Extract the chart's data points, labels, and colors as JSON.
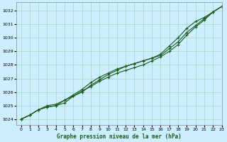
{
  "title": "Graphe pression niveau de la mer (hPa)",
  "background_color": "#cceeff",
  "grid_color": "#b0d8c8",
  "line_color": "#1a5c1a",
  "xlim": [
    -0.5,
    23
  ],
  "ylim": [
    1023.6,
    1032.6
  ],
  "yticks": [
    1024,
    1025,
    1026,
    1027,
    1028,
    1029,
    1030,
    1031,
    1032
  ],
  "xticks": [
    0,
    1,
    2,
    3,
    4,
    5,
    6,
    7,
    8,
    9,
    10,
    11,
    12,
    13,
    14,
    15,
    16,
    17,
    18,
    19,
    20,
    21,
    22,
    23
  ],
  "series1": [
    1024.0,
    1024.3,
    1024.7,
    1025.0,
    1025.1,
    1025.4,
    1025.7,
    1026.1,
    1026.4,
    1026.8,
    1027.1,
    1027.4,
    1027.6,
    1027.8,
    1028.0,
    1028.3,
    1028.6,
    1029.0,
    1029.5,
    1030.2,
    1030.8,
    1031.3,
    1031.9,
    1032.3
  ],
  "series2": [
    1024.0,
    1024.3,
    1024.7,
    1024.9,
    1025.0,
    1025.2,
    1025.7,
    1026.0,
    1026.5,
    1026.9,
    1027.3,
    1027.6,
    1027.9,
    1028.1,
    1028.3,
    1028.5,
    1028.7,
    1029.2,
    1029.7,
    1030.4,
    1030.9,
    1031.4,
    1031.9,
    1032.3
  ],
  "series3": [
    1024.0,
    1024.3,
    1024.7,
    1024.9,
    1025.0,
    1025.4,
    1025.8,
    1026.2,
    1026.7,
    1027.1,
    1027.4,
    1027.7,
    1027.9,
    1028.1,
    1028.3,
    1028.5,
    1028.8,
    1029.4,
    1030.0,
    1030.7,
    1031.2,
    1031.5,
    1031.9,
    1032.3
  ]
}
